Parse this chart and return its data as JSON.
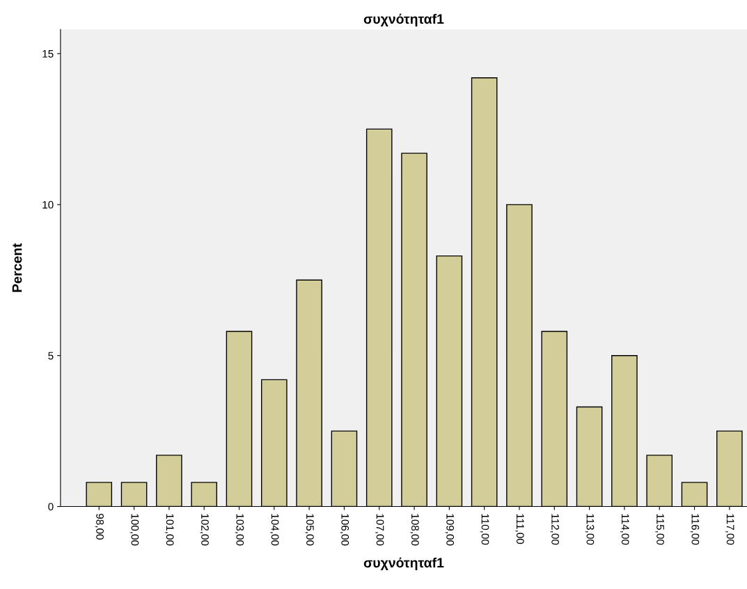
{
  "chart_data": {
    "type": "bar",
    "title": "συχνότηταf1",
    "xlabel": "συχνότηταf1",
    "ylabel": "Percent",
    "categories": [
      "98,00",
      "100,00",
      "101,00",
      "102,00",
      "103,00",
      "104,00",
      "105,00",
      "106,00",
      "107,00",
      "108,00",
      "109,00",
      "110,00",
      "111,00",
      "112,00",
      "113,00",
      "114,00",
      "115,00",
      "116,00",
      "117,00"
    ],
    "values": [
      0.8,
      0.8,
      1.7,
      0.8,
      5.8,
      4.2,
      7.5,
      2.5,
      12.5,
      11.7,
      8.3,
      14.2,
      10,
      5.8,
      3.3,
      5,
      1.7,
      0.8,
      2.5
    ],
    "color": "#d3ce99",
    "ylim": [
      0,
      15.8
    ],
    "yticks": [
      0,
      5,
      10,
      15
    ],
    "grid": false,
    "legend": false
  }
}
